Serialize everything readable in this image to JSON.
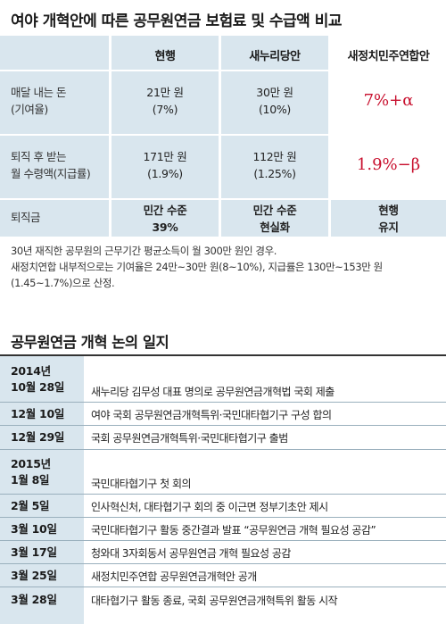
{
  "title": "여야 개혁안에 따른 공무원연금 보험료 및 수급액 비교",
  "comparison": {
    "headers": [
      "현행",
      "새누리당안",
      "새정치민주연합안"
    ],
    "rows": [
      {
        "label_lines": [
          "매달 내는 돈",
          "(기여율)"
        ],
        "current_lines": [
          "21만 원",
          "(7%)"
        ],
        "saenuri_lines": [
          "30만 원",
          "(10%)"
        ],
        "npad": "7%+α"
      },
      {
        "label_lines": [
          "퇴직 후 받는",
          "월 수령액(지급률)"
        ],
        "current_lines": [
          "171만 원",
          "(1.9%)"
        ],
        "saenuri_lines": [
          "112만 원",
          "(1.25%)"
        ],
        "npad": "1.9%−β"
      },
      {
        "label_lines": [
          "퇴직금"
        ],
        "current_lines": [
          "민간 수준",
          "39%"
        ],
        "saenuri_lines": [
          "민간 수준",
          "현실화"
        ],
        "npad_lines": [
          "현행",
          "유지"
        ]
      }
    ]
  },
  "note_lines": [
    "30년 재직한 공무원의 근무기간 평균소득이 월 300만 원인 경우.",
    "새정치연합 내부적으로는 기여율은 24만~30만 원(8~10%), 지급률은 130만~153만 원",
    "(1.45~1.7%)으로 산정."
  ],
  "timeline": {
    "title": "공무원연금 개혁 논의 일지",
    "entries": [
      {
        "date_lines": [
          "2014년",
          "10월 28일"
        ],
        "text": "새누리당 김무성 대표 명의로 공무원연금개혁법 국회 제출"
      },
      {
        "date_lines": [
          "12월 10일"
        ],
        "text": "여야 국회 공무원연금개혁특위·국민대타협기구 구성 합의"
      },
      {
        "date_lines": [
          "12월 29일"
        ],
        "text": "국회 공무원연금개혁특위·국민대타협기구 출범"
      },
      {
        "date_lines": [
          "2015년",
          "1월 8일"
        ],
        "text": "국민대타협기구 첫 회의"
      },
      {
        "date_lines": [
          "2월 5일"
        ],
        "text": "인사혁신처, 대타협기구 회의 중 이근면 정부기초안 제시"
      },
      {
        "date_lines": [
          "3월 10일"
        ],
        "text": "국민대타협기구 활동 중간결과 발표 “공무원연금 개혁 필요성 공감”"
      },
      {
        "date_lines": [
          "3월 17일"
        ],
        "text": "청와대 3자회동서 공무원연금 개혁 필요성 공감"
      },
      {
        "date_lines": [
          "3월 25일"
        ],
        "text": "새정치민주연합 공무원연금개혁안 공개"
      },
      {
        "date_lines": [
          "3월 28일"
        ],
        "text": "대타협기구 활동 종료, 국회 공무원연금개혁특위 활동 시작"
      }
    ]
  },
  "colors": {
    "table_bg": "#d9e6ee",
    "accent_red": "#c8102e"
  }
}
